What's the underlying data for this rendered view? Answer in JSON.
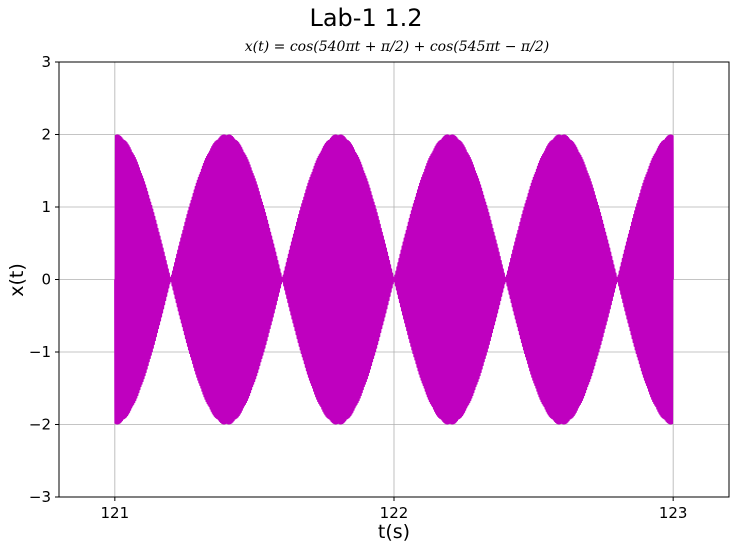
{
  "chart_data": {
    "type": "line",
    "title": "Lab-1 1.2",
    "subtitle": "x(t) = cos(540πt + π/2) + cos(545πt − π/2)",
    "xlabel": "t(s)",
    "ylabel": "x(t)",
    "xlim": [
      120.8,
      123.2
    ],
    "ylim": [
      -3,
      3
    ],
    "x_ticks": [
      121,
      122,
      123
    ],
    "y_ticks": [
      -3,
      -2,
      -1,
      0,
      1,
      2,
      3
    ],
    "x_tick_labels": [
      "121",
      "122",
      "123"
    ],
    "y_tick_labels": [
      "−3",
      "−2",
      "−1",
      "0",
      "1",
      "2",
      "3"
    ],
    "grid": true,
    "series": [
      {
        "color": "#bf00bf",
        "t_range": [
          121,
          123
        ],
        "components": [
          {
            "amplitude": 1,
            "angular_frequency_coeff_pi": 540,
            "phase_coeff_pi": 0.5
          },
          {
            "amplitude": 1,
            "angular_frequency_coeff_pi": 545,
            "phase_coeff_pi": -0.5
          }
        ]
      }
    ]
  }
}
